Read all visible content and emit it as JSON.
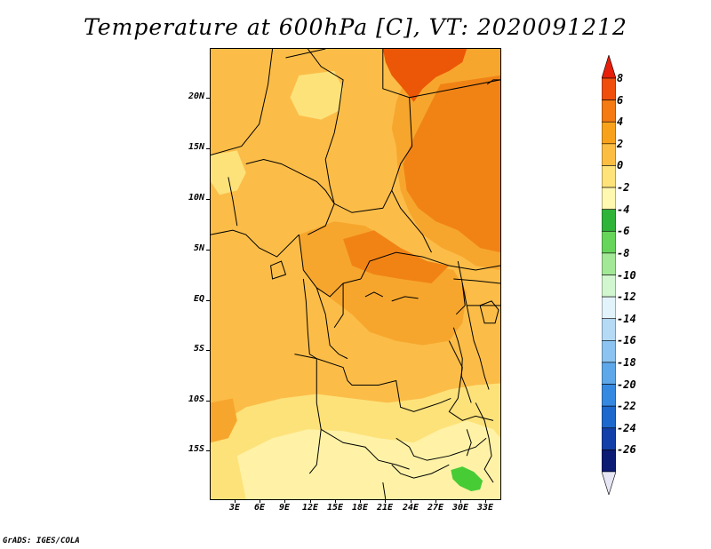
{
  "title": "Temperature at 600hPa [C], VT: 2020091212",
  "footer": "GrADS: IGES/COLA",
  "map": {
    "lat_labels": [
      "20N",
      "15N",
      "10N",
      "5N",
      "EQ",
      "5S",
      "10S",
      "15S"
    ],
    "lon_labels": [
      "3E",
      "6E",
      "9E",
      "12E",
      "15E",
      "18E",
      "21E",
      "24E",
      "27E",
      "30E",
      "33E"
    ],
    "colors": {
      "background_field": "#fbbd48",
      "warm_field": "#f7a62d",
      "hot_field": "#f18315",
      "hottest_field": "#ec5707",
      "cool_field": "#fde27a",
      "cooler_field": "#fff2a6",
      "cold_spot": "#47cc36",
      "borders": "#000000"
    }
  },
  "colorbar": {
    "labels": [
      "8",
      "6",
      "4",
      "2",
      "0",
      "-2",
      "-4",
      "-6",
      "-8",
      "-10",
      "-12",
      "-14",
      "-16",
      "-18",
      "-20",
      "-22",
      "-24",
      "-26"
    ],
    "colors": [
      "#e61e0a",
      "#f04e0d",
      "#f47a12",
      "#f8a21c",
      "#fcbe42",
      "#fee27a",
      "#fff8b0",
      "#2fb43a",
      "#66d55a",
      "#a2e897",
      "#d2f6cf",
      "#e3f3fb",
      "#b4daf6",
      "#8cc3f0",
      "#5ea8ea",
      "#3689e0",
      "#1d68cc",
      "#1240a8",
      "#0c1b74",
      "#e6e6f5"
    ]
  }
}
